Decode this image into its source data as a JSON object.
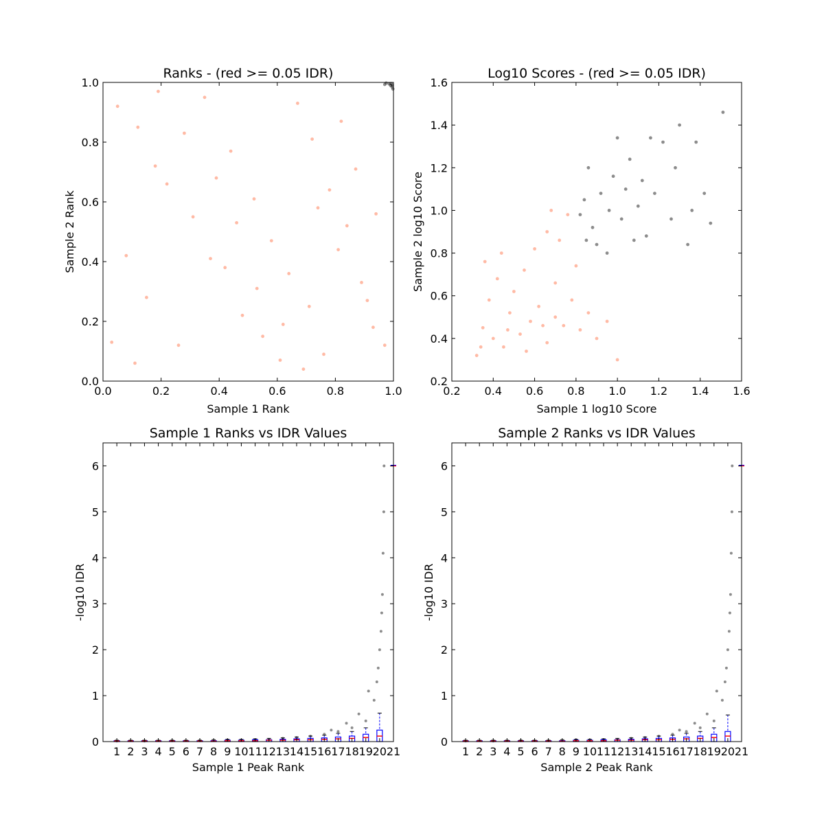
{
  "chart_data": [
    {
      "type": "scatter",
      "title": "Ranks - (red >= 0.05 IDR)",
      "xlabel": "Sample 1 Rank",
      "ylabel": "Sample 2 Rank",
      "xlim": [
        0.0,
        1.0
      ],
      "ylim": [
        0.0,
        1.0
      ],
      "xticks": [
        "0.0",
        "0.2",
        "0.4",
        "0.6",
        "0.8",
        "1.0"
      ],
      "yticks": [
        "0.0",
        "0.2",
        "0.4",
        "0.6",
        "0.8",
        "1.0"
      ],
      "grid": false,
      "series": [
        {
          "color": "#ff8c69",
          "points": [
            [
              0.05,
              0.92
            ],
            [
              0.12,
              0.85
            ],
            [
              0.18,
              0.72
            ],
            [
              0.22,
              0.66
            ],
            [
              0.31,
              0.55
            ],
            [
              0.37,
              0.41
            ],
            [
              0.42,
              0.38
            ],
            [
              0.48,
              0.22
            ],
            [
              0.55,
              0.15
            ],
            [
              0.61,
              0.07
            ],
            [
              0.67,
              0.93
            ],
            [
              0.72,
              0.81
            ],
            [
              0.78,
              0.64
            ],
            [
              0.84,
              0.52
            ],
            [
              0.89,
              0.33
            ],
            [
              0.93,
              0.18
            ],
            [
              0.08,
              0.42
            ],
            [
              0.15,
              0.28
            ],
            [
              0.26,
              0.12
            ],
            [
              0.35,
              0.95
            ],
            [
              0.44,
              0.77
            ],
            [
              0.52,
              0.61
            ],
            [
              0.58,
              0.47
            ],
            [
              0.64,
              0.36
            ],
            [
              0.71,
              0.25
            ],
            [
              0.76,
              0.09
            ],
            [
              0.82,
              0.87
            ],
            [
              0.87,
              0.71
            ],
            [
              0.94,
              0.56
            ],
            [
              0.03,
              0.13
            ],
            [
              0.11,
              0.06
            ],
            [
              0.19,
              0.97
            ],
            [
              0.28,
              0.83
            ],
            [
              0.39,
              0.68
            ],
            [
              0.46,
              0.53
            ],
            [
              0.53,
              0.31
            ],
            [
              0.62,
              0.19
            ],
            [
              0.69,
              0.04
            ],
            [
              0.74,
              0.58
            ],
            [
              0.81,
              0.44
            ],
            [
              0.91,
              0.27
            ],
            [
              0.97,
              0.12
            ]
          ]
        },
        {
          "color": "#000000",
          "points": [
            [
              0.985,
              0.995
            ],
            [
              0.99,
              0.99
            ],
            [
              0.995,
              0.985
            ],
            [
              0.975,
              0.998
            ],
            [
              0.998,
              0.978
            ],
            [
              0.992,
              0.996
            ],
            [
              0.97,
              0.993
            ],
            [
              0.996,
              0.991
            ]
          ]
        }
      ]
    },
    {
      "type": "scatter",
      "title": "Log10 Scores - (red >= 0.05 IDR)",
      "xlabel": "Sample 1 log10 Score",
      "ylabel": "Sample 2 log10 Score",
      "xlim": [
        0.2,
        1.6
      ],
      "ylim": [
        0.2,
        1.6
      ],
      "xticks": [
        "0.2",
        "0.4",
        "0.6",
        "0.8",
        "1.0",
        "1.2",
        "1.4",
        "1.6"
      ],
      "yticks": [
        "0.2",
        "0.4",
        "0.6",
        "0.8",
        "1.0",
        "1.2",
        "1.4",
        "1.6"
      ],
      "grid": false,
      "series": [
        {
          "color": "#ff8c69",
          "points": [
            [
              0.32,
              0.32
            ],
            [
              0.35,
              0.45
            ],
            [
              0.38,
              0.58
            ],
            [
              0.42,
              0.68
            ],
            [
              0.45,
              0.36
            ],
            [
              0.48,
              0.52
            ],
            [
              0.5,
              0.62
            ],
            [
              0.53,
              0.42
            ],
            [
              0.55,
              0.72
            ],
            [
              0.58,
              0.48
            ],
            [
              0.62,
              0.55
            ],
            [
              0.66,
              0.38
            ],
            [
              0.7,
              0.66
            ],
            [
              0.74,
              0.46
            ],
            [
              0.78,
              0.58
            ],
            [
              0.82,
              0.44
            ],
            [
              0.86,
              0.52
            ],
            [
              0.9,
              0.4
            ],
            [
              0.95,
              0.48
            ],
            [
              1.0,
              0.3
            ],
            [
              0.6,
              0.82
            ],
            [
              0.66,
              0.9
            ],
            [
              0.72,
              0.86
            ],
            [
              0.44,
              0.8
            ],
            [
              0.4,
              0.4
            ],
            [
              0.47,
              0.44
            ],
            [
              0.64,
              0.46
            ],
            [
              0.7,
              0.5
            ],
            [
              0.34,
              0.36
            ],
            [
              0.56,
              0.34
            ],
            [
              0.76,
              0.98
            ],
            [
              0.8,
              0.74
            ],
            [
              0.36,
              0.76
            ],
            [
              0.68,
              1.0
            ]
          ]
        },
        {
          "color": "#000000",
          "points": [
            [
              0.82,
              0.98
            ],
            [
              0.85,
              0.86
            ],
            [
              0.88,
              0.92
            ],
            [
              0.92,
              1.08
            ],
            [
              0.95,
              0.8
            ],
            [
              0.98,
              1.16
            ],
            [
              1.02,
              0.96
            ],
            [
              1.06,
              1.24
            ],
            [
              1.1,
              1.02
            ],
            [
              1.14,
              0.88
            ],
            [
              1.18,
              1.08
            ],
            [
              1.22,
              1.32
            ],
            [
              1.26,
              0.96
            ],
            [
              1.3,
              1.4
            ],
            [
              1.34,
              0.84
            ],
            [
              1.38,
              1.32
            ],
            [
              1.42,
              1.08
            ],
            [
              1.45,
              0.94
            ],
            [
              1.51,
              1.46
            ],
            [
              0.86,
              1.2
            ],
            [
              0.9,
              0.84
            ],
            [
              1.0,
              1.34
            ],
            [
              1.08,
              0.86
            ],
            [
              1.16,
              1.34
            ],
            [
              0.84,
              1.05
            ],
            [
              0.96,
              1.0
            ],
            [
              1.04,
              1.1
            ],
            [
              1.12,
              1.14
            ],
            [
              1.28,
              1.2
            ],
            [
              1.36,
              1.0
            ]
          ]
        }
      ]
    },
    {
      "type": "scatter",
      "title": "Sample 1 Ranks vs IDR Values",
      "xlabel": "Sample 1 Peak Rank",
      "ylabel": "-log10 IDR",
      "xlim": [
        0,
        21
      ],
      "ylim": [
        0,
        6.5
      ],
      "xticks": [
        "1",
        "2",
        "3",
        "4",
        "5",
        "6",
        "7",
        "8",
        "9",
        "10",
        "11",
        "12",
        "13",
        "14",
        "15",
        "16",
        "17",
        "18",
        "19",
        "20",
        "21"
      ],
      "yticks": [
        "0",
        "1",
        "2",
        "3",
        "4",
        "5",
        "6"
      ],
      "grid": false,
      "series": [
        {
          "color": "#000000",
          "points": [
            [
              1,
              0.01
            ],
            [
              3,
              0.01
            ],
            [
              5,
              0.02
            ],
            [
              7,
              0.02
            ],
            [
              9,
              0.03
            ],
            [
              11,
              0.04
            ],
            [
              12,
              0.05
            ],
            [
              13,
              0.07
            ],
            [
              14,
              0.09
            ],
            [
              15,
              0.12
            ],
            [
              16,
              0.16
            ],
            [
              17,
              0.22
            ],
            [
              18,
              0.3
            ],
            [
              19,
              0.45
            ],
            [
              19.6,
              0.9
            ],
            [
              19.9,
              1.6
            ],
            [
              20.1,
              2.4
            ],
            [
              20.2,
              3.2
            ],
            [
              20.25,
              4.1
            ],
            [
              20.3,
              5.0
            ],
            [
              20.32,
              6.0
            ],
            [
              18.5,
              0.6
            ],
            [
              19.2,
              1.1
            ],
            [
              17.6,
              0.4
            ],
            [
              16.5,
              0.25
            ],
            [
              19.8,
              1.3
            ],
            [
              20.0,
              2.0
            ],
            [
              20.15,
              2.8
            ]
          ]
        }
      ],
      "boxes": {
        "color": "#0000ff",
        "medians": [
          0.01,
          0.01,
          0.01,
          0.01,
          0.01,
          0.01,
          0.01,
          0.01,
          0.02,
          0.02,
          0.02,
          0.03,
          0.03,
          0.04,
          0.04,
          0.05,
          0.06,
          0.07,
          0.09,
          0.12,
          6.0
        ],
        "upper": [
          0.02,
          0.02,
          0.02,
          0.02,
          0.02,
          0.02,
          0.02,
          0.02,
          0.03,
          0.03,
          0.04,
          0.04,
          0.05,
          0.06,
          0.07,
          0.08,
          0.1,
          0.12,
          0.16,
          0.25,
          6.0
        ],
        "whisker_high": [
          0.03,
          0.03,
          0.03,
          0.03,
          0.03,
          0.03,
          0.03,
          0.04,
          0.05,
          0.05,
          0.06,
          0.07,
          0.08,
          0.1,
          0.12,
          0.14,
          0.18,
          0.22,
          0.3,
          0.62,
          6.0
        ]
      }
    },
    {
      "type": "scatter",
      "title": "Sample 2 Ranks vs IDR Values",
      "xlabel": "Sample 2 Peak Rank",
      "ylabel": "-log10 IDR",
      "xlim": [
        0,
        21
      ],
      "ylim": [
        0,
        6.5
      ],
      "xticks": [
        "1",
        "2",
        "3",
        "4",
        "5",
        "6",
        "7",
        "8",
        "9",
        "10",
        "11",
        "12",
        "13",
        "14",
        "15",
        "16",
        "17",
        "18",
        "19",
        "20",
        "21"
      ],
      "yticks": [
        "0",
        "1",
        "2",
        "3",
        "4",
        "5",
        "6"
      ],
      "grid": false,
      "series": [
        {
          "color": "#000000",
          "points": [
            [
              1,
              0.01
            ],
            [
              3,
              0.01
            ],
            [
              5,
              0.02
            ],
            [
              7,
              0.02
            ],
            [
              9,
              0.03
            ],
            [
              11,
              0.04
            ],
            [
              12,
              0.05
            ],
            [
              13,
              0.07
            ],
            [
              14,
              0.09
            ],
            [
              15,
              0.12
            ],
            [
              16,
              0.16
            ],
            [
              17,
              0.22
            ],
            [
              18,
              0.3
            ],
            [
              19,
              0.45
            ],
            [
              19.6,
              0.9
            ],
            [
              19.9,
              1.6
            ],
            [
              20.1,
              2.4
            ],
            [
              20.2,
              3.2
            ],
            [
              20.25,
              4.1
            ],
            [
              20.3,
              5.0
            ],
            [
              20.32,
              6.0
            ],
            [
              18.5,
              0.6
            ],
            [
              19.2,
              1.1
            ],
            [
              17.6,
              0.4
            ],
            [
              16.5,
              0.25
            ],
            [
              19.8,
              1.3
            ],
            [
              20.0,
              2.0
            ],
            [
              20.15,
              2.8
            ]
          ]
        }
      ],
      "boxes": {
        "color": "#0000ff",
        "medians": [
          0.01,
          0.01,
          0.01,
          0.01,
          0.01,
          0.01,
          0.01,
          0.01,
          0.02,
          0.02,
          0.02,
          0.03,
          0.03,
          0.04,
          0.04,
          0.05,
          0.06,
          0.07,
          0.09,
          0.12,
          6.0
        ],
        "upper": [
          0.02,
          0.02,
          0.02,
          0.02,
          0.02,
          0.02,
          0.02,
          0.02,
          0.03,
          0.03,
          0.04,
          0.04,
          0.05,
          0.06,
          0.07,
          0.08,
          0.1,
          0.12,
          0.16,
          0.22,
          6.0
        ],
        "whisker_high": [
          0.03,
          0.03,
          0.03,
          0.03,
          0.03,
          0.03,
          0.03,
          0.04,
          0.05,
          0.05,
          0.06,
          0.07,
          0.08,
          0.1,
          0.12,
          0.14,
          0.18,
          0.22,
          0.3,
          0.58,
          6.0
        ]
      }
    }
  ]
}
